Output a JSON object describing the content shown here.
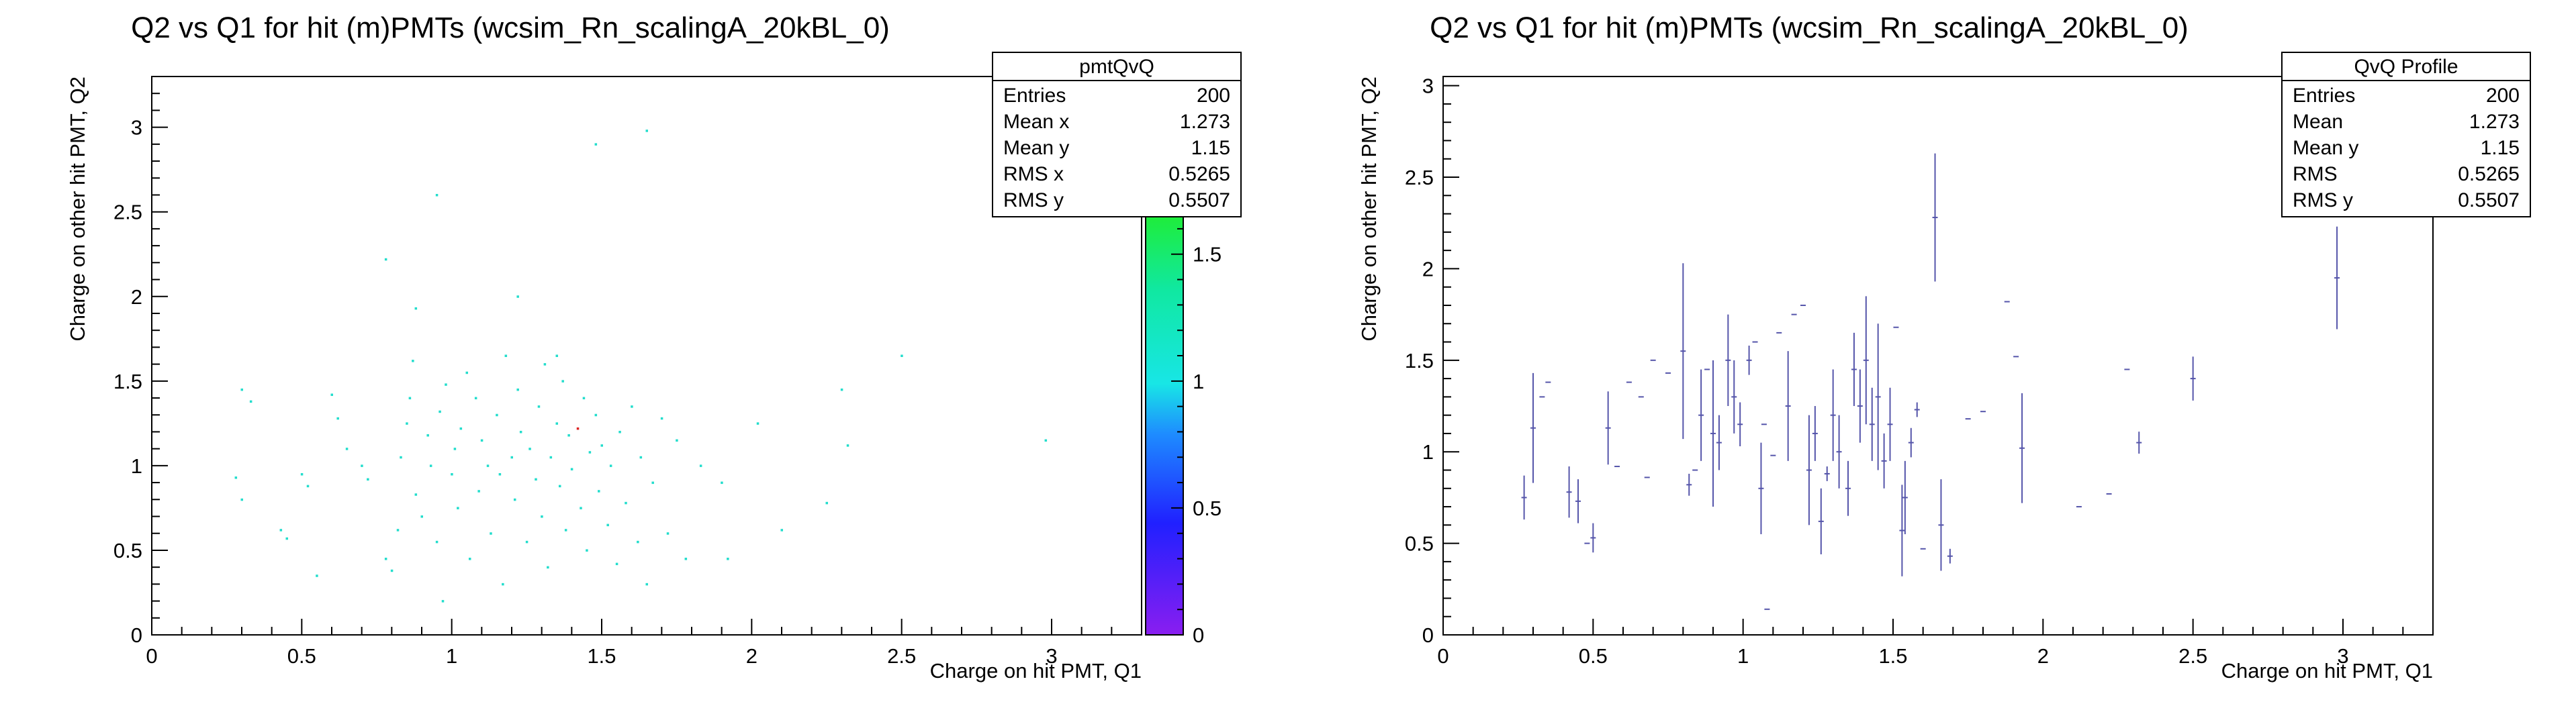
{
  "chart_data": [
    {
      "type": "heatmap",
      "title": "Q2 vs Q1 for hit (m)PMTs (wcsim_Rn_scalingA_20kBL_0)",
      "xlabel": "Charge on hit PMT, Q1",
      "ylabel": "Charge on other hit PMT, Q2",
      "xlim": [
        0,
        3.3
      ],
      "ylim": [
        0,
        3.3
      ],
      "x_ticks": [
        "0",
        "0.5",
        "1",
        "1.5",
        "2",
        "2.5",
        "3"
      ],
      "y_ticks": [
        "0",
        "0.5",
        "1",
        "1.5",
        "2",
        "2.5",
        "3"
      ],
      "colorbar": {
        "range": [
          0,
          2.2
        ],
        "ticks": [
          "0",
          "0.5",
          "1",
          "1.5",
          "2"
        ]
      },
      "stats": {
        "name": "pmtQvQ",
        "rows": [
          {
            "label": "Entries",
            "value": "200"
          },
          {
            "label": "Mean x",
            "value": "1.273"
          },
          {
            "label": "Mean y",
            "value": "1.15"
          },
          {
            "label": "RMS x",
            "value": "0.5265"
          },
          {
            "label": "RMS y",
            "value": "0.5507"
          }
        ]
      },
      "points": [
        [
          0.3,
          1.45,
          1
        ],
        [
          0.33,
          1.38,
          1
        ],
        [
          0.28,
          0.93,
          1
        ],
        [
          0.3,
          0.8,
          1
        ],
        [
          0.43,
          0.62,
          1
        ],
        [
          0.45,
          0.57,
          1
        ],
        [
          0.5,
          0.95,
          1
        ],
        [
          0.52,
          0.88,
          1
        ],
        [
          0.55,
          0.35,
          1
        ],
        [
          0.6,
          1.42,
          1
        ],
        [
          0.62,
          1.28,
          1
        ],
        [
          0.65,
          1.1,
          1
        ],
        [
          0.7,
          1.0,
          1
        ],
        [
          0.72,
          0.92,
          1
        ],
        [
          0.78,
          0.45,
          1
        ],
        [
          0.8,
          0.38,
          1
        ],
        [
          0.82,
          0.62,
          1
        ],
        [
          0.83,
          1.05,
          1
        ],
        [
          0.85,
          1.25,
          1
        ],
        [
          0.86,
          1.4,
          1
        ],
        [
          0.87,
          1.62,
          1
        ],
        [
          0.88,
          0.83,
          1
        ],
        [
          0.9,
          0.7,
          1
        ],
        [
          0.92,
          1.18,
          1
        ],
        [
          0.93,
          1.0,
          1
        ],
        [
          0.95,
          0.55,
          1
        ],
        [
          0.96,
          1.32,
          1
        ],
        [
          0.97,
          0.2,
          1
        ],
        [
          0.98,
          1.48,
          1
        ],
        [
          1.0,
          0.95,
          1
        ],
        [
          1.01,
          1.1,
          1
        ],
        [
          1.02,
          0.75,
          1
        ],
        [
          1.03,
          1.22,
          1
        ],
        [
          1.05,
          1.55,
          1
        ],
        [
          1.06,
          0.45,
          1
        ],
        [
          1.08,
          1.4,
          1
        ],
        [
          1.09,
          0.85,
          1
        ],
        [
          1.1,
          1.15,
          1
        ],
        [
          1.12,
          1.0,
          1
        ],
        [
          1.13,
          0.6,
          1
        ],
        [
          1.15,
          1.3,
          1
        ],
        [
          1.16,
          0.95,
          1
        ],
        [
          1.17,
          0.3,
          1
        ],
        [
          1.18,
          1.65,
          1
        ],
        [
          1.2,
          1.05,
          1
        ],
        [
          1.21,
          0.8,
          1
        ],
        [
          1.22,
          1.45,
          1
        ],
        [
          1.23,
          1.2,
          1
        ],
        [
          1.25,
          0.55,
          1
        ],
        [
          1.26,
          1.1,
          1
        ],
        [
          1.28,
          0.92,
          1
        ],
        [
          1.29,
          1.35,
          1
        ],
        [
          1.3,
          0.7,
          1
        ],
        [
          1.31,
          1.6,
          1
        ],
        [
          1.32,
          0.4,
          1
        ],
        [
          1.33,
          1.05,
          1
        ],
        [
          1.35,
          1.25,
          1
        ],
        [
          1.36,
          0.88,
          1
        ],
        [
          1.37,
          1.5,
          1
        ],
        [
          1.38,
          0.62,
          1
        ],
        [
          1.39,
          1.18,
          1
        ],
        [
          1.4,
          0.98,
          1
        ],
        [
          1.42,
          1.22,
          2
        ],
        [
          1.43,
          0.75,
          1
        ],
        [
          1.44,
          1.4,
          1
        ],
        [
          1.45,
          0.5,
          1
        ],
        [
          1.46,
          1.08,
          1
        ],
        [
          1.48,
          1.3,
          1
        ],
        [
          1.49,
          0.85,
          1
        ],
        [
          1.5,
          1.12,
          1
        ],
        [
          1.52,
          0.65,
          1
        ],
        [
          1.53,
          1.0,
          1
        ],
        [
          1.55,
          0.42,
          1
        ],
        [
          1.56,
          1.2,
          1
        ],
        [
          1.58,
          0.78,
          1
        ],
        [
          1.6,
          1.35,
          1
        ],
        [
          1.62,
          0.55,
          1
        ],
        [
          1.63,
          1.05,
          1
        ],
        [
          1.65,
          0.3,
          1
        ],
        [
          1.67,
          0.9,
          1
        ],
        [
          1.7,
          1.28,
          1
        ],
        [
          1.72,
          0.6,
          1
        ],
        [
          1.75,
          1.15,
          1
        ],
        [
          1.78,
          0.45,
          1
        ],
        [
          1.83,
          1.0,
          1
        ],
        [
          1.9,
          0.9,
          1
        ],
        [
          1.92,
          0.45,
          1
        ],
        [
          2.02,
          1.25,
          1
        ],
        [
          2.1,
          0.62,
          1
        ],
        [
          2.25,
          0.78,
          1
        ],
        [
          2.3,
          1.45,
          1
        ],
        [
          2.32,
          1.12,
          1
        ],
        [
          2.5,
          1.65,
          1
        ],
        [
          2.98,
          1.15,
          1
        ],
        [
          0.78,
          2.22,
          1
        ],
        [
          0.95,
          2.6,
          1
        ],
        [
          1.22,
          2.0,
          1
        ],
        [
          1.65,
          2.98,
          1
        ],
        [
          1.35,
          1.65,
          1
        ],
        [
          0.88,
          1.93,
          1
        ],
        [
          1.48,
          2.9,
          1
        ]
      ]
    },
    {
      "type": "scatter",
      "title": "Q2 vs Q1 for hit (m)PMTs (wcsim_Rn_scalingA_20kBL_0)",
      "xlabel": "Charge on hit PMT, Q1",
      "ylabel": "Charge on other hit PMT, Q2",
      "xlim": [
        0,
        3.3
      ],
      "ylim": [
        0,
        3.05
      ],
      "x_ticks": [
        "0",
        "0.5",
        "1",
        "1.5",
        "2",
        "2.5",
        "3"
      ],
      "y_ticks": [
        "0",
        "0.5",
        "1",
        "1.5",
        "2",
        "2.5",
        "3"
      ],
      "stats": {
        "name": "QvQ Profile",
        "rows": [
          {
            "label": "Entries",
            "value": "200"
          },
          {
            "label": "Mean",
            "value": "1.273"
          },
          {
            "label": "Mean y",
            "value": "1.15"
          },
          {
            "label": "RMS",
            "value": "0.5265"
          },
          {
            "label": "RMS y",
            "value": "0.5507"
          }
        ]
      },
      "profile": [
        [
          0.27,
          0.75,
          0.12
        ],
        [
          0.3,
          1.13,
          0.3
        ],
        [
          0.33,
          1.3,
          0.0
        ],
        [
          0.35,
          1.38,
          0.0
        ],
        [
          0.42,
          0.78,
          0.14
        ],
        [
          0.45,
          0.73,
          0.12
        ],
        [
          0.48,
          0.5,
          0.0
        ],
        [
          0.5,
          0.53,
          0.08
        ],
        [
          0.55,
          1.13,
          0.2
        ],
        [
          0.58,
          0.92,
          0.0
        ],
        [
          0.62,
          1.38,
          0.0
        ],
        [
          0.66,
          1.3,
          0.0
        ],
        [
          0.68,
          0.86,
          0.0
        ],
        [
          0.7,
          1.5,
          0.0
        ],
        [
          0.75,
          1.43,
          0.0
        ],
        [
          0.8,
          1.55,
          0.48
        ],
        [
          0.82,
          0.82,
          0.06
        ],
        [
          0.84,
          0.9,
          0.0
        ],
        [
          0.86,
          1.2,
          0.25
        ],
        [
          0.88,
          1.45,
          0.0
        ],
        [
          0.9,
          1.1,
          0.4
        ],
        [
          0.92,
          1.05,
          0.15
        ],
        [
          0.95,
          1.5,
          0.25
        ],
        [
          0.97,
          1.3,
          0.2
        ],
        [
          0.99,
          1.15,
          0.12
        ],
        [
          1.02,
          1.5,
          0.08
        ],
        [
          1.04,
          1.6,
          0.0
        ],
        [
          1.06,
          0.8,
          0.25
        ],
        [
          1.07,
          1.15,
          0.0
        ],
        [
          1.08,
          0.14,
          0.0
        ],
        [
          1.1,
          0.98,
          0.0
        ],
        [
          1.12,
          1.65,
          0.0
        ],
        [
          1.15,
          1.25,
          0.3
        ],
        [
          1.17,
          1.75,
          0.0
        ],
        [
          1.2,
          1.8,
          0.0
        ],
        [
          1.22,
          0.9,
          0.3
        ],
        [
          1.24,
          1.1,
          0.15
        ],
        [
          1.26,
          0.62,
          0.18
        ],
        [
          1.28,
          0.88,
          0.04
        ],
        [
          1.3,
          1.2,
          0.25
        ],
        [
          1.32,
          1.0,
          0.2
        ],
        [
          1.35,
          0.8,
          0.15
        ],
        [
          1.37,
          1.45,
          0.2
        ],
        [
          1.39,
          1.25,
          0.2
        ],
        [
          1.41,
          1.5,
          0.35
        ],
        [
          1.43,
          1.15,
          0.2
        ],
        [
          1.45,
          1.3,
          0.4
        ],
        [
          1.47,
          0.95,
          0.15
        ],
        [
          1.49,
          1.15,
          0.2
        ],
        [
          1.51,
          1.68,
          0.0
        ],
        [
          1.53,
          0.57,
          0.25
        ],
        [
          1.54,
          0.75,
          0.2
        ],
        [
          1.56,
          1.05,
          0.08
        ],
        [
          1.58,
          1.23,
          0.04
        ],
        [
          1.6,
          0.47,
          0.0
        ],
        [
          1.64,
          2.28,
          0.35
        ],
        [
          1.66,
          0.6,
          0.25
        ],
        [
          1.69,
          0.43,
          0.04
        ],
        [
          1.75,
          1.18,
          0.0
        ],
        [
          1.8,
          1.22,
          0.0
        ],
        [
          1.88,
          1.82,
          0.0
        ],
        [
          1.91,
          1.52,
          0.0
        ],
        [
          1.93,
          1.02,
          0.3
        ],
        [
          2.12,
          0.7,
          0.0
        ],
        [
          2.22,
          0.77,
          0.0
        ],
        [
          2.28,
          1.45,
          0.0
        ],
        [
          2.32,
          1.05,
          0.06
        ],
        [
          2.5,
          1.4,
          0.12
        ],
        [
          2.98,
          1.95,
          0.28
        ]
      ]
    }
  ]
}
